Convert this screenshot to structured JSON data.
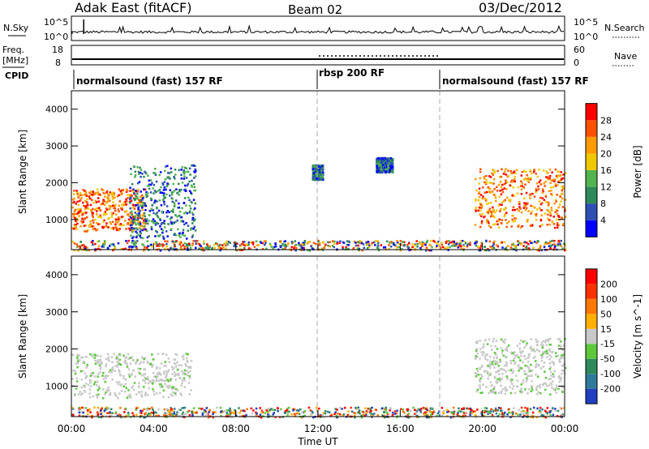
{
  "header": {
    "station": "Adak East (fitACF)",
    "beam": "Beam 02",
    "date": "03/Dec/2012"
  },
  "noise_panel": {
    "left_label": "N.Sky",
    "right_label": "N.Search",
    "left_ticks": [
      "10^5",
      "10^0"
    ],
    "right_ticks": [
      "10^5",
      "10^0"
    ]
  },
  "freq_panel": {
    "left_label_line1": "Freq.",
    "left_label_line2": "[MHz]",
    "right_label": "Nave",
    "left_ticks": [
      "18",
      "8"
    ],
    "right_ticks": [
      "60",
      "0"
    ]
  },
  "cpid_panel": {
    "label": "CPID",
    "segments": [
      {
        "name": "normalsound (fast) 157 RF",
        "start_hour": 0,
        "end_hour": 12
      },
      {
        "name": "rbsp 200 RF",
        "start_hour": 12,
        "end_hour": 18
      },
      {
        "name": "normalsound (fast) 157 RF",
        "start_hour": 18,
        "end_hour": 24
      }
    ]
  },
  "chart_data": [
    {
      "type": "heatmap",
      "title": "",
      "ylabel": "Slant Range [km]",
      "xlabel": "",
      "xlim": [
        0,
        24
      ],
      "ylim": [
        180,
        4500
      ],
      "yticks": [
        "1000",
        "2000",
        "3000",
        "4000"
      ],
      "colorbar": {
        "label": "Power [dB]",
        "ticks": [
          "4",
          "8",
          "12",
          "16",
          "20",
          "24",
          "28"
        ],
        "colors": [
          "#0000ff",
          "#2e4fb4",
          "#2e8a58",
          "#52b44e",
          "#f0c800",
          "#ff9a00",
          "#ff5000",
          "#ff0000"
        ]
      },
      "echo_regions": [
        {
          "start_hour": 0.0,
          "end_hour": 3.6,
          "range_min_km": 700,
          "range_max_km": 1850,
          "level": "high"
        },
        {
          "start_hour": 2.8,
          "end_hour": 6.0,
          "range_min_km": 500,
          "range_max_km": 2500,
          "level": "low"
        },
        {
          "start_hour": 19.6,
          "end_hour": 24.0,
          "range_min_km": 800,
          "range_max_km": 2400,
          "level": "high"
        },
        {
          "start_hour": 11.7,
          "end_hour": 12.2,
          "range_min_km": 2100,
          "range_max_km": 2500,
          "level": "low"
        },
        {
          "start_hour": 14.8,
          "end_hour": 15.6,
          "range_min_km": 2300,
          "range_max_km": 2700,
          "level": "low"
        },
        {
          "start_hour": 0.0,
          "end_hour": 24.0,
          "range_min_km": 180,
          "range_max_km": 450,
          "level": "noise"
        }
      ]
    },
    {
      "type": "heatmap",
      "title": "",
      "ylabel": "Slant Range [km]",
      "xlabel": "Time UT",
      "xlim": [
        0,
        24
      ],
      "ylim": [
        180,
        4500
      ],
      "xticks": [
        "00:00",
        "04:00",
        "08:00",
        "12:00",
        "16:00",
        "20:00",
        "00:00"
      ],
      "yticks": [
        "1000",
        "2000",
        "3000",
        "4000"
      ],
      "colorbar": {
        "label": "Velocity [m s^-1]",
        "ticks": [
          "200",
          "100",
          "50",
          "15",
          "-15",
          "-50",
          "-100",
          "-200"
        ],
        "colors": [
          "#1f3fbf",
          "#2e7a9a",
          "#2e8a58",
          "#5cc83a",
          "#c8c8c8",
          "#ffb000",
          "#ff7800",
          "#ff3000",
          "#ff0000"
        ]
      },
      "echo_regions": [
        {
          "start_hour": 0.0,
          "end_hour": 5.8,
          "range_min_km": 700,
          "range_max_km": 1900,
          "level": "ground"
        },
        {
          "start_hour": 19.6,
          "end_hour": 24.0,
          "range_min_km": 800,
          "range_max_km": 2300,
          "level": "ground"
        },
        {
          "start_hour": 0.0,
          "end_hour": 24.0,
          "range_min_km": 180,
          "range_max_km": 450,
          "level": "noise"
        }
      ]
    }
  ]
}
